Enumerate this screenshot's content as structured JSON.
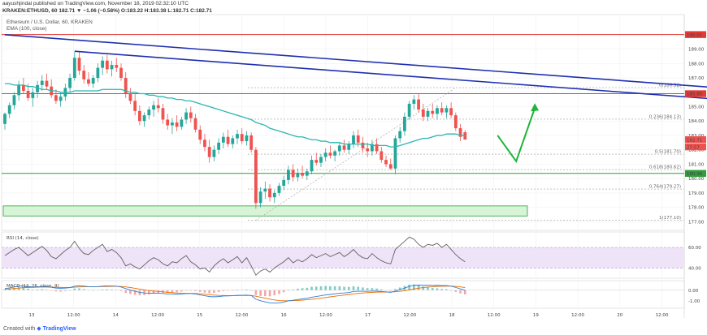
{
  "header": {
    "publisher_line": "aayushjindal published on TradingView.com, November 18, 2019 02:32:10 UTC",
    "ohlc_line": "KRAKEN:ETHUSD, 60  182.71  ▼ −1.06 (−0.58%)  O:183.22  H:183.38  L:182.71  C:182.71",
    "symbol_title": "Ethereum / U.S. Dollar, 60, KRAKEN",
    "ema_label": "EMA (100, close)"
  },
  "footer": {
    "prefix": "Created with",
    "brand": "TradingView"
  },
  "colors": {
    "up": "#26a69a",
    "down": "#ef5350",
    "ema": "#2ab6b0",
    "trendline": "#1f2fb0",
    "resistance": "#e53935",
    "support": "#2e9e3a",
    "fib": "#9e9e9e",
    "rsi": "#606060",
    "rsi_band": "#efe3f7",
    "macd": "#2a7fd4",
    "signal": "#ef6c00",
    "arrow": "#1db53a"
  },
  "chart_data": [
    {
      "type": "candlestick",
      "title": "Ethereum / U.S. Dollar, 60, KRAKEN",
      "ylim": [
        176.4,
        191.4
      ],
      "x_tick_labels": [
        "13",
        "12:00",
        "14",
        "12:00",
        "15",
        "12:00",
        "16",
        "12:00",
        "17",
        "12:00",
        "18",
        "12:00",
        "19",
        "12:00",
        "20",
        "12:00"
      ],
      "y_tick_labels": [
        "177.00",
        "178.00",
        "179.00",
        "180.00",
        "181.00",
        "182.00",
        "183.00",
        "184.00",
        "185.00",
        "186.00",
        "187.00",
        "188.00",
        "189.00"
      ],
      "price_tags": [
        {
          "label": "190.01",
          "value": 190.01,
          "color": "#e53935"
        },
        {
          "label": "185.90",
          "value": 185.9,
          "color": "#e53935"
        },
        {
          "label": "182.71",
          "value": 182.71,
          "color": "#ef5350"
        },
        {
          "label": "27:57",
          "value": 182.2,
          "color": "#ef5350"
        },
        {
          "label": "180.36",
          "value": 180.36,
          "color": "#2e9e3a"
        }
      ],
      "resistance_levels": [
        190.01,
        185.9
      ],
      "support_level": 180.36,
      "support_zone": [
        177.4,
        178.1
      ],
      "fib_levels": [
        {
          "label": "0(186.32)",
          "value": 186.32
        },
        {
          "label": "0.236(184.13)",
          "value": 184.13
        },
        {
          "label": "0.5(181.70)",
          "value": 181.7
        },
        {
          "label": "0.618(180.62)",
          "value": 180.62
        },
        {
          "label": "0.764(179.27)",
          "value": 179.27
        },
        {
          "label": "1(177.10)",
          "value": 177.1
        }
      ],
      "candles": [
        [
          183.8,
          184.6,
          183.4,
          184.5
        ],
        [
          184.5,
          185.3,
          184.2,
          185.1
        ],
        [
          185.1,
          186.0,
          184.8,
          185.8
        ],
        [
          185.8,
          186.8,
          185.4,
          186.5
        ],
        [
          186.5,
          187.0,
          185.9,
          186.1
        ],
        [
          186.1,
          186.6,
          185.4,
          185.6
        ],
        [
          185.6,
          186.3,
          185.0,
          186.0
        ],
        [
          186.0,
          186.8,
          185.6,
          186.5
        ],
        [
          186.5,
          187.2,
          186.1,
          186.8
        ],
        [
          186.8,
          187.3,
          186.2,
          186.4
        ],
        [
          186.4,
          186.9,
          185.6,
          185.8
        ],
        [
          185.8,
          186.2,
          185.2,
          185.4
        ],
        [
          185.4,
          186.0,
          185.0,
          185.7
        ],
        [
          185.7,
          186.6,
          185.4,
          186.3
        ],
        [
          186.3,
          187.3,
          186.0,
          187.0
        ],
        [
          187.0,
          188.8,
          186.8,
          188.4
        ],
        [
          188.4,
          188.8,
          187.2,
          187.5
        ],
        [
          187.5,
          187.9,
          186.6,
          186.9
        ],
        [
          186.9,
          187.4,
          186.4,
          186.6
        ],
        [
          186.6,
          187.2,
          186.3,
          187.0
        ],
        [
          187.0,
          188.0,
          186.7,
          187.7
        ],
        [
          187.7,
          188.5,
          187.2,
          188.2
        ],
        [
          188.2,
          188.6,
          187.3,
          187.6
        ],
        [
          187.6,
          188.2,
          187.1,
          187.9
        ],
        [
          187.9,
          188.4,
          187.4,
          187.7
        ],
        [
          187.7,
          188.0,
          186.8,
          187.0
        ],
        [
          187.0,
          187.4,
          185.6,
          185.9
        ],
        [
          185.9,
          186.3,
          185.2,
          185.4
        ],
        [
          185.4,
          185.9,
          184.4,
          184.7
        ],
        [
          184.7,
          185.1,
          183.7,
          184.0
        ],
        [
          184.0,
          184.6,
          183.6,
          184.4
        ],
        [
          184.4,
          185.0,
          184.1,
          184.8
        ],
        [
          184.8,
          185.4,
          184.3,
          185.1
        ],
        [
          185.1,
          185.6,
          184.6,
          184.9
        ],
        [
          184.9,
          185.2,
          183.8,
          184.1
        ],
        [
          184.1,
          184.5,
          183.4,
          183.7
        ],
        [
          183.7,
          184.2,
          183.1,
          183.9
        ],
        [
          183.9,
          184.4,
          183.3,
          183.6
        ],
        [
          183.6,
          184.3,
          183.4,
          184.1
        ],
        [
          184.1,
          184.9,
          183.8,
          184.6
        ],
        [
          184.6,
          185.0,
          183.9,
          184.2
        ],
        [
          184.2,
          184.5,
          183.2,
          183.4
        ],
        [
          183.4,
          183.7,
          182.4,
          182.7
        ],
        [
          182.7,
          183.1,
          181.9,
          182.2
        ],
        [
          182.2,
          182.7,
          181.1,
          181.5
        ],
        [
          181.5,
          182.3,
          181.2,
          182.0
        ],
        [
          182.0,
          182.8,
          181.7,
          182.5
        ],
        [
          182.5,
          183.2,
          182.1,
          182.9
        ],
        [
          182.9,
          183.4,
          182.2,
          182.4
        ],
        [
          182.4,
          183.0,
          182.1,
          182.8
        ],
        [
          182.8,
          183.4,
          182.4,
          183.1
        ],
        [
          183.1,
          183.5,
          182.4,
          182.6
        ],
        [
          182.6,
          183.3,
          182.3,
          183.0
        ],
        [
          183.0,
          183.2,
          181.8,
          182.0
        ],
        [
          182.0,
          182.2,
          177.9,
          178.3
        ],
        [
          178.3,
          179.4,
          178.0,
          179.1
        ],
        [
          179.1,
          179.8,
          178.6,
          179.3
        ],
        [
          179.3,
          179.6,
          178.4,
          178.7
        ],
        [
          178.7,
          179.2,
          178.3,
          179.0
        ],
        [
          179.0,
          179.7,
          178.8,
          179.5
        ],
        [
          179.5,
          180.2,
          179.2,
          179.9
        ],
        [
          179.9,
          180.9,
          179.6,
          180.6
        ],
        [
          180.6,
          181.0,
          179.8,
          180.1
        ],
        [
          180.1,
          180.7,
          179.8,
          180.4
        ],
        [
          180.4,
          180.9,
          180.0,
          180.2
        ],
        [
          180.2,
          180.7,
          179.9,
          180.5
        ],
        [
          180.5,
          181.6,
          180.3,
          181.3
        ],
        [
          181.3,
          181.8,
          180.9,
          181.1
        ],
        [
          181.1,
          181.7,
          180.8,
          181.5
        ],
        [
          181.5,
          182.1,
          181.2,
          181.8
        ],
        [
          181.8,
          182.3,
          181.4,
          181.6
        ],
        [
          181.6,
          182.0,
          181.2,
          181.9
        ],
        [
          181.9,
          182.5,
          181.6,
          182.3
        ],
        [
          182.3,
          182.7,
          181.8,
          182.0
        ],
        [
          182.0,
          182.6,
          181.7,
          182.4
        ],
        [
          182.4,
          183.3,
          182.1,
          183.0
        ],
        [
          183.0,
          183.4,
          182.2,
          182.5
        ],
        [
          182.5,
          182.9,
          181.8,
          182.1
        ],
        [
          182.1,
          182.5,
          181.5,
          181.9
        ],
        [
          181.9,
          182.7,
          181.6,
          182.4
        ],
        [
          182.4,
          182.8,
          181.7,
          181.9
        ],
        [
          181.9,
          182.2,
          181.1,
          181.3
        ],
        [
          181.3,
          181.6,
          180.8,
          181.0
        ],
        [
          181.0,
          181.4,
          180.6,
          180.7
        ],
        [
          180.7,
          183.0,
          180.3,
          182.8
        ],
        [
          182.8,
          183.6,
          182.5,
          183.3
        ],
        [
          183.3,
          184.6,
          183.0,
          184.3
        ],
        [
          184.3,
          185.4,
          184.1,
          185.2
        ],
        [
          185.2,
          185.8,
          184.8,
          185.5
        ],
        [
          185.5,
          185.9,
          184.6,
          184.8
        ],
        [
          184.8,
          185.2,
          184.0,
          184.3
        ],
        [
          184.3,
          184.9,
          184.0,
          184.7
        ],
        [
          184.7,
          185.2,
          184.2,
          184.5
        ],
        [
          184.5,
          185.1,
          184.1,
          184.9
        ],
        [
          184.9,
          185.3,
          184.4,
          184.6
        ],
        [
          184.6,
          185.1,
          184.2,
          184.9
        ],
        [
          184.9,
          185.3,
          184.2,
          184.4
        ],
        [
          184.4,
          184.6,
          183.3,
          183.5
        ],
        [
          183.5,
          183.8,
          182.6,
          182.9
        ],
        [
          183.22,
          183.38,
          182.71,
          182.71
        ]
      ],
      "ema_100": [
        186.6,
        186.6,
        186.5,
        186.5,
        186.5,
        186.4,
        186.4,
        186.3,
        186.2,
        186.2,
        186.1,
        186.1,
        186.0,
        186.0,
        186.0,
        186.1,
        186.1,
        186.1,
        186.1,
        186.1,
        186.1,
        186.2,
        186.2,
        186.2,
        186.2,
        186.2,
        186.1,
        186.0,
        186.0,
        185.9,
        185.9,
        185.8,
        185.8,
        185.7,
        185.7,
        185.6,
        185.6,
        185.5,
        185.5,
        185.4,
        185.4,
        185.3,
        185.2,
        185.1,
        185.0,
        184.9,
        184.8,
        184.7,
        184.6,
        184.5,
        184.4,
        184.3,
        184.2,
        184.1,
        183.9,
        183.8,
        183.7,
        183.5,
        183.4,
        183.3,
        183.2,
        183.1,
        183.0,
        182.9,
        182.9,
        182.8,
        182.7,
        182.7,
        182.6,
        182.6,
        182.5,
        182.5,
        182.5,
        182.4,
        182.4,
        182.4,
        182.4,
        182.4,
        182.4,
        182.3,
        182.3,
        182.3,
        182.3,
        182.2,
        182.2,
        182.3,
        182.4,
        182.5,
        182.6,
        182.7,
        182.8,
        182.8,
        182.9,
        183.0,
        183.0,
        183.1,
        183.1,
        183.1,
        183.0,
        183.0
      ],
      "trendlines": [
        {
          "from": {
            "bar": 0,
            "price": 190.0
          },
          "to": {
            "bar": 154,
            "price": 186.3
          }
        },
        {
          "from": {
            "bar": 15,
            "price": 188.85
          },
          "to": {
            "bar": 154,
            "price": 185.5
          }
        }
      ],
      "fib_anchor_line": {
        "from": {
          "bar": 54,
          "price": 177.1
        },
        "to": {
          "bar": 97,
          "price": 186.32
        }
      },
      "projection_arrow": [
        {
          "bar": 106,
          "price": 183.0
        },
        {
          "bar": 110,
          "price": 181.2
        },
        {
          "bar": 114,
          "price": 184.9
        }
      ]
    },
    {
      "type": "line",
      "title": "RSI (14, close)",
      "ylim": [
        30,
        75
      ],
      "y_tick_labels": [
        "60.00",
        "40.00"
      ],
      "band": [
        40,
        60
      ],
      "values": [
        52,
        55,
        58,
        60,
        56,
        52,
        55,
        58,
        61,
        57,
        51,
        49,
        53,
        57,
        60,
        66,
        59,
        54,
        53,
        57,
        60,
        63,
        56,
        58,
        55,
        50,
        42,
        44,
        41,
        39,
        43,
        47,
        50,
        48,
        44,
        42,
        46,
        45,
        49,
        52,
        46,
        43,
        39,
        40,
        36,
        42,
        46,
        49,
        45,
        48,
        51,
        45,
        50,
        42,
        33,
        37,
        39,
        36,
        40,
        43,
        46,
        50,
        45,
        48,
        46,
        49,
        53,
        50,
        52,
        54,
        51,
        53,
        55,
        51,
        54,
        58,
        53,
        50,
        49,
        54,
        50,
        47,
        45,
        44,
        58,
        62,
        66,
        70,
        68,
        63,
        60,
        63,
        62,
        64,
        60,
        63,
        58,
        53,
        49,
        46
      ]
    },
    {
      "type": "line",
      "title": "MACD (12, 26, close, 9)",
      "ylim": [
        -1.7,
        0.9
      ],
      "y_tick_labels": [
        "0.00",
        "-1.00"
      ],
      "series": [
        {
          "name": "MACD",
          "values": [
            0.15,
            0.22,
            0.3,
            0.38,
            0.4,
            0.35,
            0.3,
            0.32,
            0.35,
            0.33,
            0.27,
            0.2,
            0.18,
            0.2,
            0.25,
            0.38,
            0.42,
            0.38,
            0.33,
            0.32,
            0.34,
            0.38,
            0.4,
            0.4,
            0.38,
            0.3,
            0.15,
            0.02,
            -0.1,
            -0.2,
            -0.26,
            -0.28,
            -0.27,
            -0.28,
            -0.32,
            -0.36,
            -0.37,
            -0.38,
            -0.36,
            -0.32,
            -0.32,
            -0.36,
            -0.44,
            -0.52,
            -0.6,
            -0.62,
            -0.6,
            -0.55,
            -0.54,
            -0.52,
            -0.48,
            -0.48,
            -0.46,
            -0.5,
            -0.85,
            -1.0,
            -1.1,
            -1.2,
            -1.22,
            -1.2,
            -1.12,
            -1.0,
            -0.95,
            -0.88,
            -0.82,
            -0.76,
            -0.66,
            -0.6,
            -0.52,
            -0.44,
            -0.4,
            -0.34,
            -0.28,
            -0.26,
            -0.22,
            -0.12,
            -0.1,
            -0.1,
            -0.11,
            -0.08,
            -0.08,
            -0.12,
            -0.16,
            -0.2,
            -0.08,
            0.05,
            0.2,
            0.36,
            0.46,
            0.48,
            0.46,
            0.46,
            0.45,
            0.46,
            0.44,
            0.44,
            0.38,
            0.26,
            0.12,
            0.0
          ]
        },
        {
          "name": "Signal",
          "values": [
            0.1,
            0.12,
            0.16,
            0.2,
            0.24,
            0.26,
            0.27,
            0.28,
            0.29,
            0.3,
            0.29,
            0.27,
            0.26,
            0.25,
            0.25,
            0.28,
            0.31,
            0.32,
            0.32,
            0.32,
            0.33,
            0.34,
            0.35,
            0.36,
            0.36,
            0.35,
            0.31,
            0.25,
            0.18,
            0.1,
            0.03,
            -0.03,
            -0.08,
            -0.12,
            -0.16,
            -0.2,
            -0.23,
            -0.26,
            -0.28,
            -0.29,
            -0.3,
            -0.31,
            -0.34,
            -0.38,
            -0.42,
            -0.46,
            -0.49,
            -0.5,
            -0.51,
            -0.51,
            -0.51,
            -0.5,
            -0.5,
            -0.5,
            -0.57,
            -0.66,
            -0.75,
            -0.84,
            -0.92,
            -0.98,
            -1.0,
            -1.0,
            -0.99,
            -0.97,
            -0.94,
            -0.9,
            -0.86,
            -0.81,
            -0.75,
            -0.69,
            -0.63,
            -0.57,
            -0.51,
            -0.46,
            -0.41,
            -0.35,
            -0.3,
            -0.26,
            -0.23,
            -0.2,
            -0.18,
            -0.17,
            -0.17,
            -0.17,
            -0.15,
            -0.11,
            -0.05,
            0.03,
            0.12,
            0.19,
            0.25,
            0.29,
            0.32,
            0.35,
            0.37,
            0.38,
            0.38,
            0.36,
            0.31,
            0.25
          ]
        }
      ]
    }
  ]
}
